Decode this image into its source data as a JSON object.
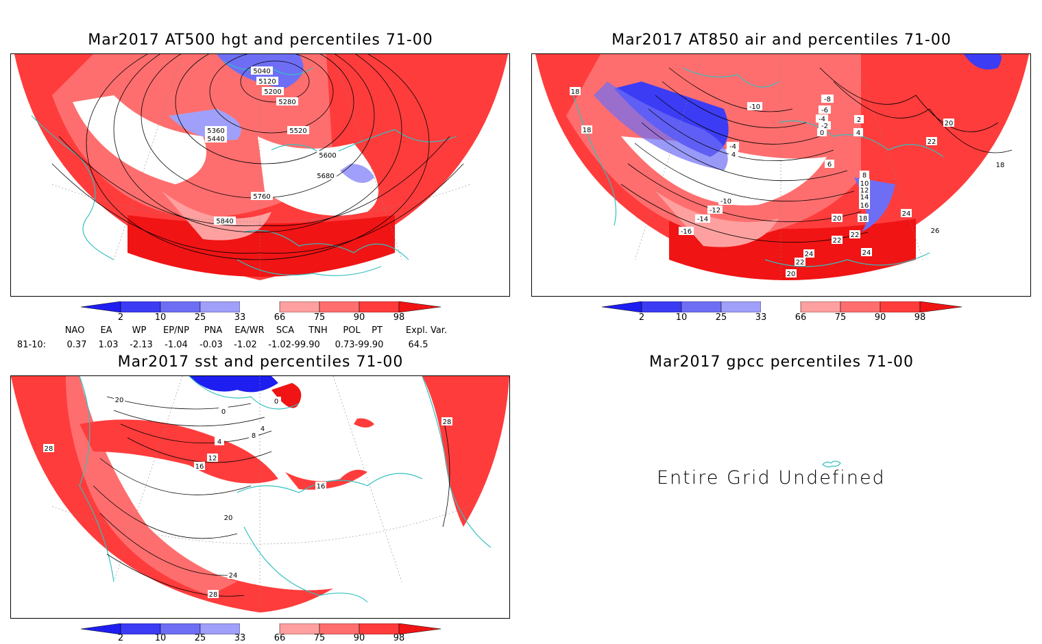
{
  "panels": {
    "hgt500": {
      "title": "Mar2017 AT500 hgt and percentiles 71-00",
      "contour_labels": [
        "5040",
        "5120",
        "5200",
        "5280",
        "5360",
        "5440",
        "5520",
        "5600",
        "5680",
        "5760",
        "5840"
      ]
    },
    "air850": {
      "title": "Mar2017 AT850 air and percentiles 71-00",
      "contour_labels": [
        "18",
        "18",
        "-10",
        "-8",
        "-6",
        "-4",
        "-2",
        "0",
        "2",
        "4",
        "-4",
        "4",
        "6",
        "8",
        "10",
        "12",
        "14",
        "16",
        "18",
        "20",
        "22",
        "24",
        "26",
        "22",
        "20",
        "18",
        "-16",
        "-14",
        "-12",
        "-10",
        "22",
        "24",
        "22",
        "20",
        "24"
      ]
    },
    "sst": {
      "title": "Mar2017 sst and percentiles 71-00",
      "contour_labels": [
        "20",
        "28",
        "0",
        "4",
        "8",
        "12",
        "16",
        "20",
        "24",
        "28",
        "0",
        "4",
        "16",
        "28"
      ]
    },
    "gpcc": {
      "title": "Mar2017 gpcc percentiles 71-00",
      "message": "Entire Grid Undefined"
    }
  },
  "colorbar": {
    "labels": [
      "2",
      "10",
      "25",
      "33",
      "66",
      "75",
      "90",
      "98"
    ],
    "colors": {
      "extreme_low": "#1e1ef0",
      "low_10": "#3c3cf5",
      "low_25": "#6e6ef5",
      "low_33": "#a0a0fa",
      "neutral": "#ffffff",
      "high_66": "#ffa0a0",
      "high_75": "#ff6e6e",
      "high_90": "#ff3c3c",
      "extreme_high": "#f01414"
    }
  },
  "teleconnection_indices": {
    "headers": [
      "NAO",
      "EA",
      "WP",
      "EP/NP",
      "PNA",
      "EA/WR",
      "SCA",
      "TNH",
      "POL",
      "PT",
      "Expl. Var."
    ],
    "row_label": "81-10:",
    "values": [
      "0.37",
      "1.03",
      "-2.13",
      "-1.04",
      "-0.03",
      "-1.02",
      "-1.02-99.90",
      "0.73-99.90",
      "64.5"
    ]
  },
  "map_colors": {
    "coastline": "#33c0c0",
    "contour": "#000000"
  }
}
